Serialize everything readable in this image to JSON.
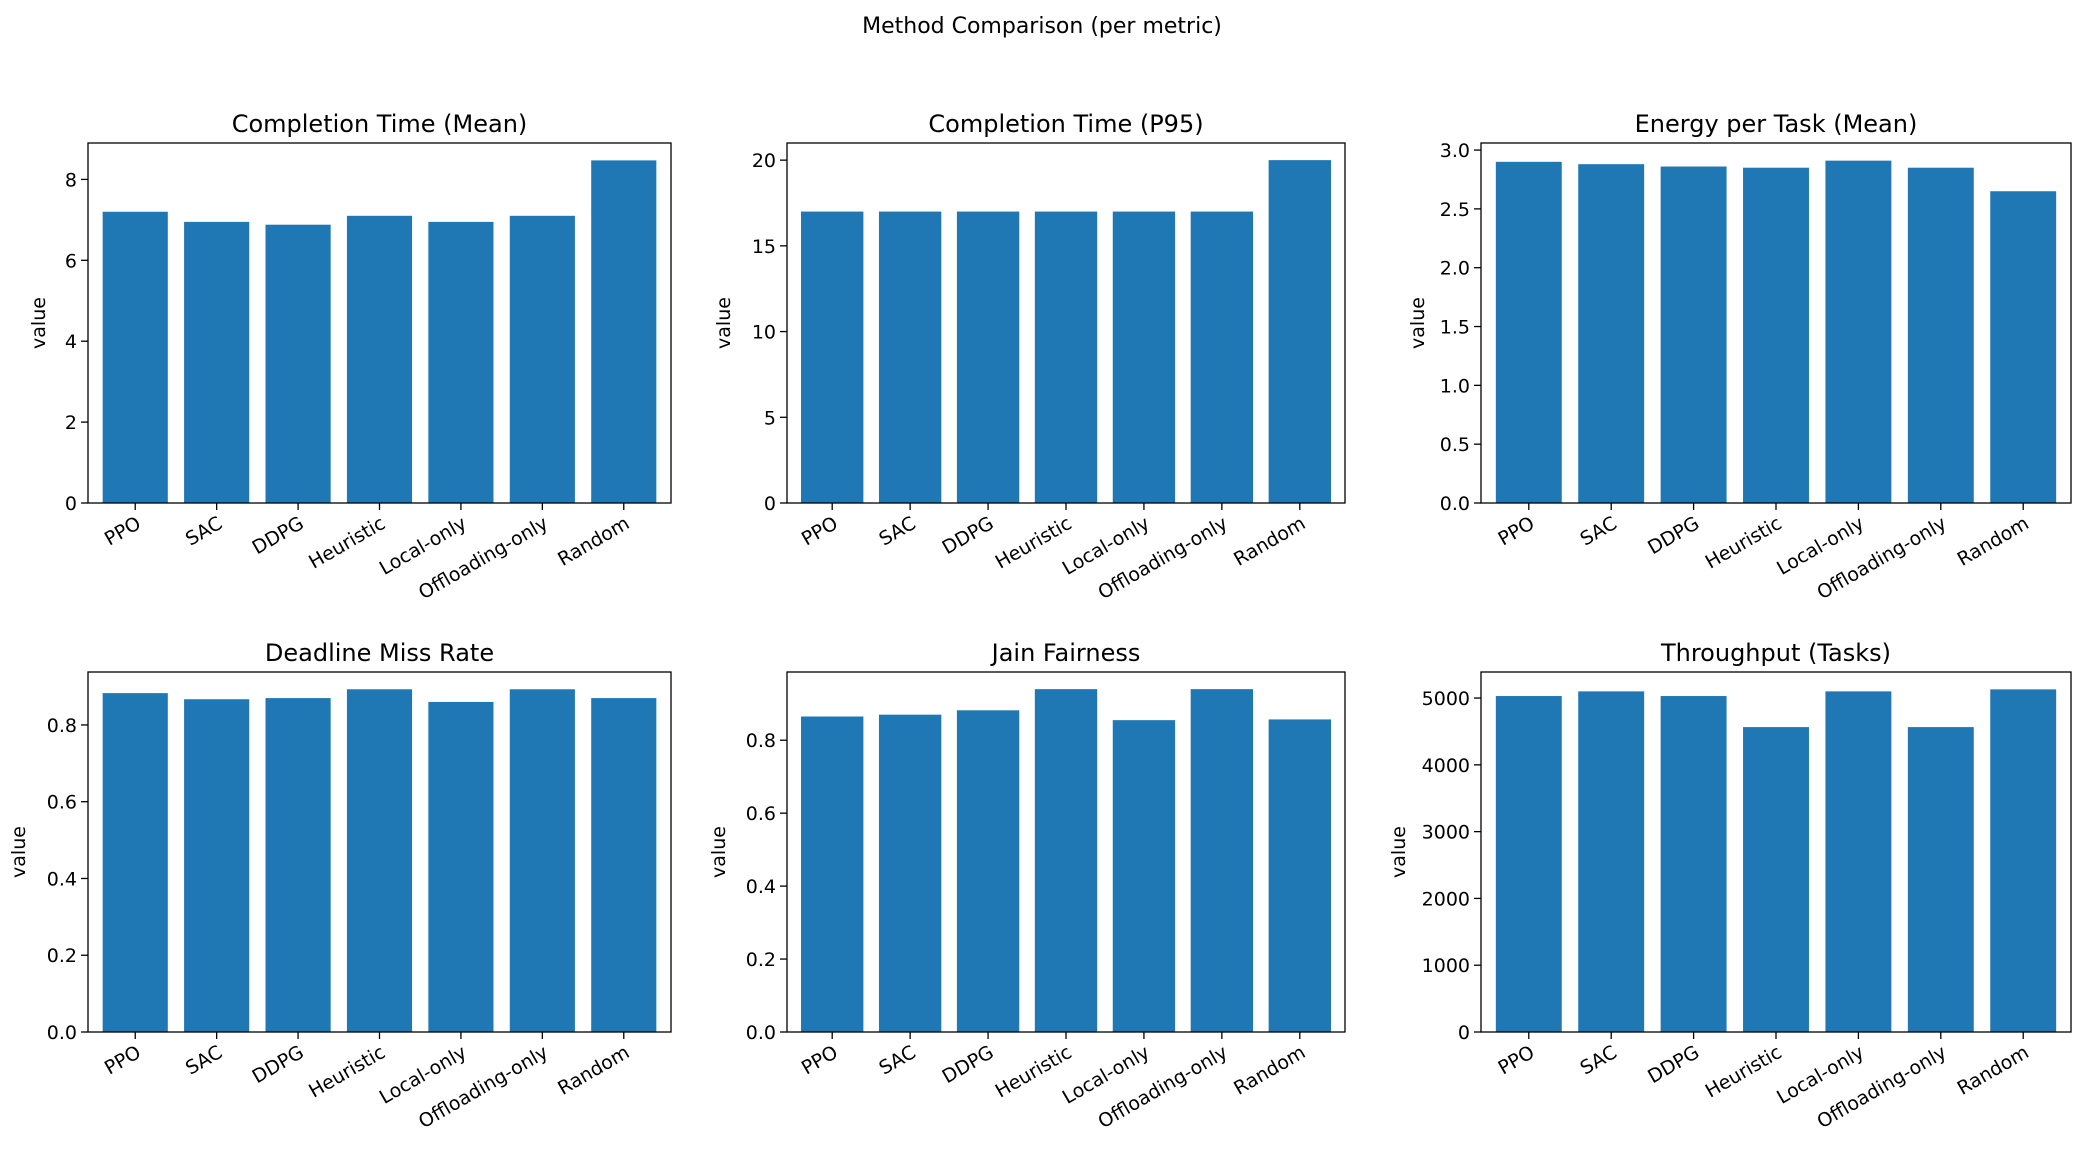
{
  "figure": {
    "suptitle": "Method Comparison (per metric)",
    "bar_color": "#1f77b4"
  },
  "chart_data": [
    {
      "type": "bar",
      "title": "Completion Time (Mean)",
      "xlabel": "",
      "ylabel": "value",
      "categories": [
        "PPO",
        "SAC",
        "DDPG",
        "Heuristic",
        "Local-only",
        "Offloading-only",
        "Random"
      ],
      "values": [
        7.2,
        6.95,
        6.88,
        7.1,
        6.95,
        7.1,
        8.47
      ],
      "ylim": [
        0,
        8.9
      ],
      "yticks": [
        0,
        2,
        4,
        6,
        8
      ],
      "ytick_labels": [
        "0",
        "2",
        "4",
        "6",
        "8"
      ],
      "grid": false
    },
    {
      "type": "bar",
      "title": "Completion Time (P95)",
      "xlabel": "",
      "ylabel": "value",
      "categories": [
        "PPO",
        "SAC",
        "DDPG",
        "Heuristic",
        "Local-only",
        "Offloading-only",
        "Random"
      ],
      "values": [
        17,
        17,
        17,
        17,
        17,
        17,
        20
      ],
      "ylim": [
        0,
        21
      ],
      "yticks": [
        0,
        5,
        10,
        15,
        20
      ],
      "ytick_labels": [
        "0",
        "5",
        "10",
        "15",
        "20"
      ],
      "grid": false
    },
    {
      "type": "bar",
      "title": "Energy per Task (Mean)",
      "xlabel": "",
      "ylabel": "value",
      "categories": [
        "PPO",
        "SAC",
        "DDPG",
        "Heuristic",
        "Local-only",
        "Offloading-only",
        "Random"
      ],
      "values": [
        2.9,
        2.88,
        2.86,
        2.85,
        2.91,
        2.85,
        2.65
      ],
      "ylim": [
        0,
        3.06
      ],
      "yticks": [
        0,
        0.5,
        1.0,
        1.5,
        2.0,
        2.5,
        3.0
      ],
      "ytick_labels": [
        "0.0",
        "0.5",
        "1.0",
        "1.5",
        "2.0",
        "2.5",
        "3.0"
      ],
      "grid": false
    },
    {
      "type": "bar",
      "title": "Deadline Miss Rate",
      "xlabel": "",
      "ylabel": "value",
      "categories": [
        "PPO",
        "SAC",
        "DDPG",
        "Heuristic",
        "Local-only",
        "Offloading-only",
        "Random"
      ],
      "values": [
        0.883,
        0.867,
        0.87,
        0.893,
        0.86,
        0.893,
        0.87
      ],
      "ylim": [
        0,
        0.938
      ],
      "yticks": [
        0,
        0.2,
        0.4,
        0.6,
        0.8
      ],
      "ytick_labels": [
        "0.0",
        "0.2",
        "0.4",
        "0.6",
        "0.8"
      ],
      "grid": false
    },
    {
      "type": "bar",
      "title": "Jain Fairness",
      "xlabel": "",
      "ylabel": "value",
      "categories": [
        "PPO",
        "SAC",
        "DDPG",
        "Heuristic",
        "Local-only",
        "Offloading-only",
        "Random"
      ],
      "values": [
        0.865,
        0.87,
        0.882,
        0.94,
        0.855,
        0.94,
        0.857
      ],
      "ylim": [
        0,
        0.987
      ],
      "yticks": [
        0,
        0.2,
        0.4,
        0.6,
        0.8
      ],
      "ytick_labels": [
        "0.0",
        "0.2",
        "0.4",
        "0.6",
        "0.8"
      ],
      "grid": false
    },
    {
      "type": "bar",
      "title": "Throughput (Tasks)",
      "xlabel": "",
      "ylabel": "value",
      "categories": [
        "PPO",
        "SAC",
        "DDPG",
        "Heuristic",
        "Local-only",
        "Offloading-only",
        "Random"
      ],
      "values": [
        5030,
        5100,
        5030,
        4565,
        5100,
        4565,
        5130
      ],
      "ylim": [
        0,
        5390
      ],
      "yticks": [
        0,
        1000,
        2000,
        3000,
        4000,
        5000
      ],
      "ytick_labels": [
        "0",
        "1000",
        "2000",
        "3000",
        "4000",
        "5000"
      ],
      "grid": false
    }
  ]
}
